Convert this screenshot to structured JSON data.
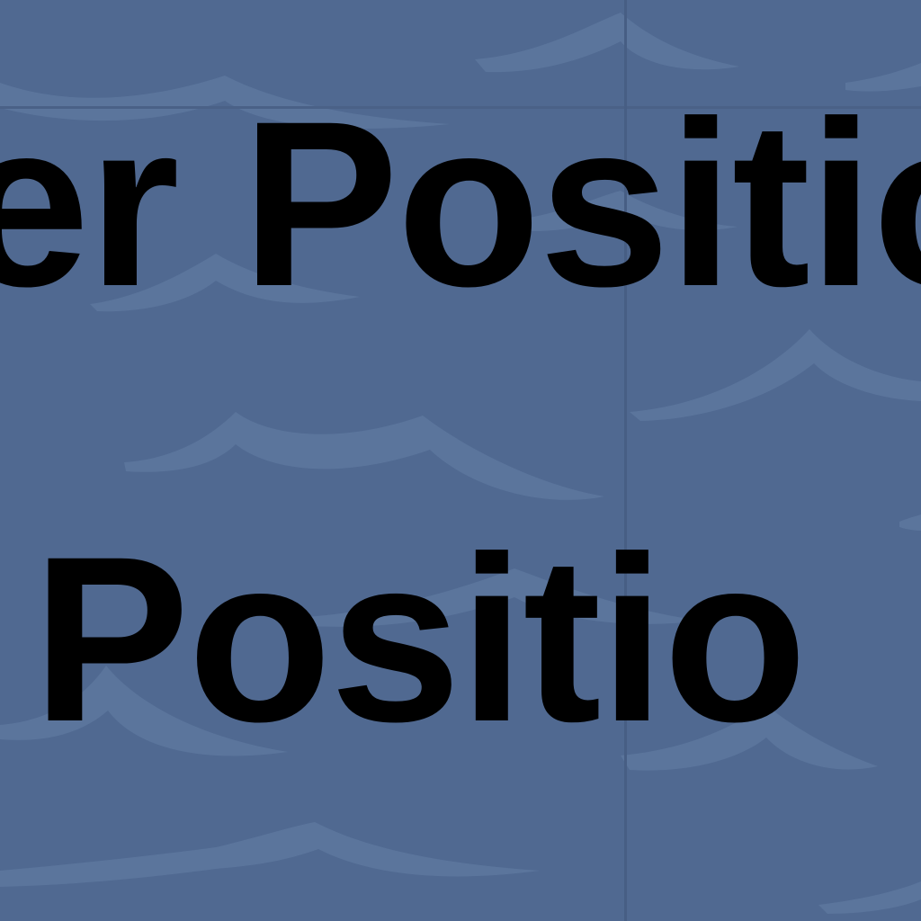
{
  "board": {
    "background_color": "#506991",
    "wave_color": "#6a82a6",
    "text_color": "#000000"
  },
  "labels": {
    "top": "er Positio",
    "bottom": "t Positio"
  }
}
